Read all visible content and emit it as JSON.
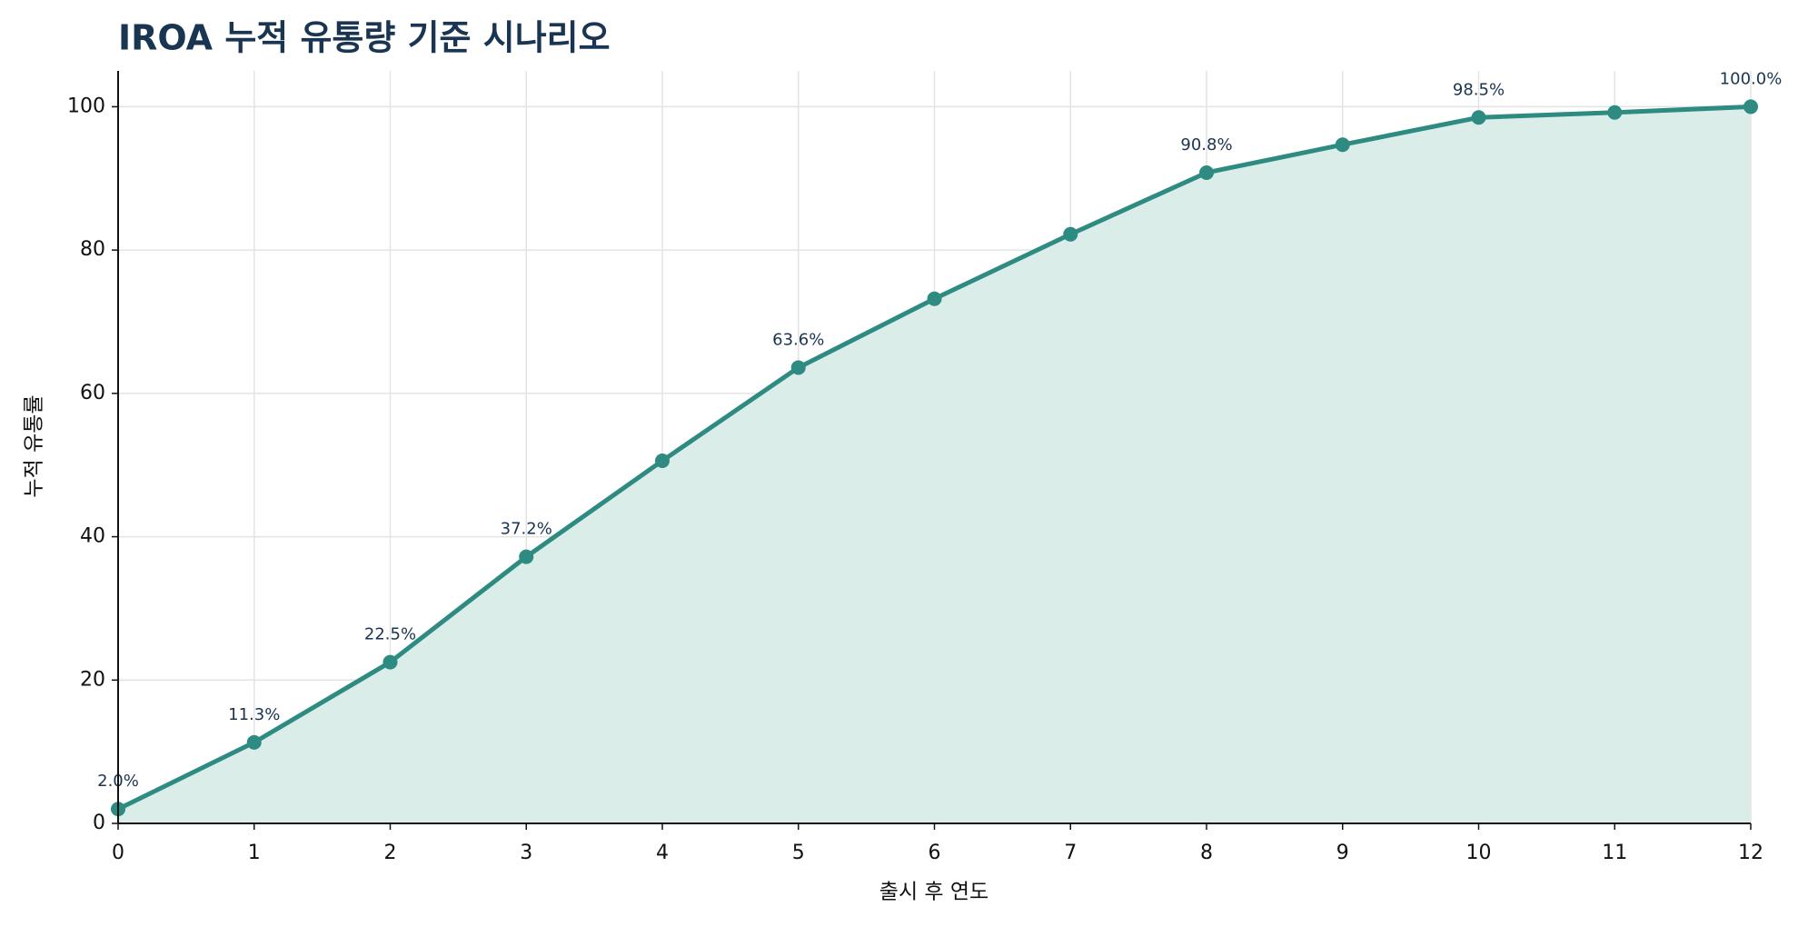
{
  "chart_data": {
    "type": "line",
    "title": "IROA 누적 유통량 기준 시나리오",
    "x_label": "출시 후 연도",
    "y_label": "누적 유통률",
    "x": [
      0,
      1,
      2,
      3,
      4,
      5,
      6,
      7,
      8,
      9,
      10,
      11,
      12
    ],
    "values": [
      2.0,
      11.3,
      22.5,
      37.2,
      50.6,
      63.6,
      73.2,
      82.2,
      90.8,
      94.7,
      98.5,
      99.2,
      100.0
    ],
    "value_labels": [
      "2.0%",
      "11.3%",
      "22.5%",
      "37.2%",
      null,
      "63.6%",
      null,
      null,
      "90.8%",
      null,
      "98.5%",
      null,
      "100.0%"
    ],
    "color": "#2e8b82",
    "fill_color": "#daede9",
    "fill": true,
    "xlim": [
      0,
      12
    ],
    "xticks": [
      0,
      1,
      2,
      3,
      4,
      5,
      6,
      7,
      8,
      9,
      10,
      11,
      12
    ],
    "ylim": [
      0,
      105
    ],
    "yticks": [
      0,
      20,
      40,
      60,
      80,
      100
    ],
    "grid": true
  }
}
